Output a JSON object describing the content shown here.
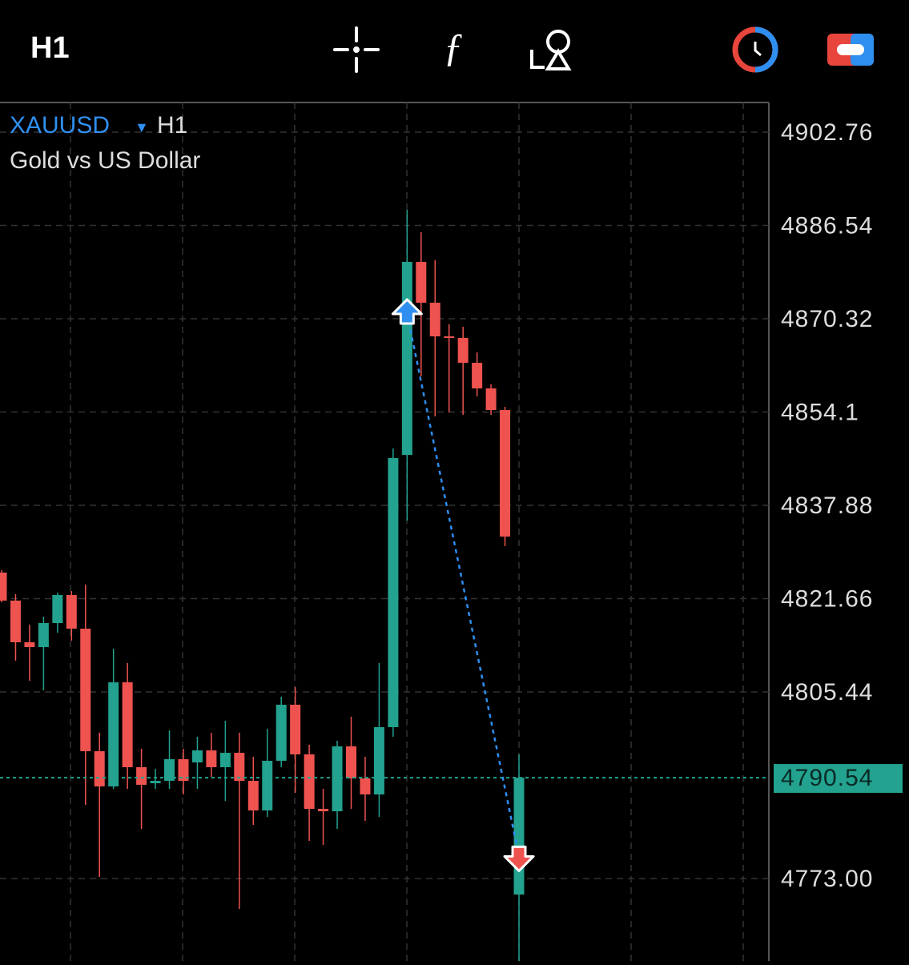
{
  "toolbar": {
    "timeframe": "H1"
  },
  "chart_data": {
    "type": "candlestick",
    "symbol": "XAUUSD",
    "timeframe": "H1",
    "title": "Gold vs US Dollar",
    "up_color": "#22a28f",
    "down_color": "#ef5350",
    "open": [
      4826.19,
      4821.32,
      4814.08,
      4813.24,
      4817.42,
      4822.29,
      4816.44,
      4795.14,
      4789.02,
      4807.12,
      4792.36,
      4789.57,
      4789.99,
      4793.75,
      4793.19,
      4795.28,
      4792.36,
      4794.86,
      4789.99,
      4784.84,
      4793.47,
      4803.22,
      4794.59,
      4785.12,
      4784.7,
      4795.98,
      4790.41,
      4787.62,
      4799.32,
      4846.65,
      4880.21,
      4873.11,
      4867.26,
      4866.98,
      4862.66,
      4858.21,
      4854.45,
      4770.22
    ],
    "high": [
      4826.61,
      4822.43,
      4817.14,
      4818.53,
      4822.71,
      4822.99,
      4824.1,
      4798.34,
      4812.96,
      4810.46,
      4795.56,
      4792.08,
      4798.76,
      4795.56,
      4797.65,
      4798.34,
      4800.43,
      4798.34,
      4794.17,
      4799.04,
      4804.61,
      4806.28,
      4796.26,
      4788.6,
      4796.95,
      4801.13,
      4794.17,
      4810.46,
      4847.77,
      4889.26,
      4885.36,
      4880.48,
      4869.35,
      4868.93,
      4864.47,
      4858.91,
      4855.01,
      4794.59
    ],
    "low": [
      4821.04,
      4810.87,
      4807.39,
      4805.72,
      4815.75,
      4814.36,
      4785.82,
      4773.29,
      4788.6,
      4788.6,
      4781.64,
      4788.6,
      4788.6,
      4787.62,
      4788.6,
      4790.69,
      4786.51,
      4767.72,
      4782.33,
      4783.73,
      4792.36,
      4787.9,
      4779.55,
      4778.85,
      4781.64,
      4785.12,
      4783.03,
      4783.73,
      4797.65,
      4835.24,
      4860.3,
      4853.34,
      4854.03,
      4853.62,
      4856.82,
      4853.62,
      4830.78,
      4757.27
    ],
    "close": [
      4821.32,
      4814.08,
      4813.24,
      4817.42,
      4822.29,
      4816.44,
      4795.14,
      4789.02,
      4807.12,
      4792.36,
      4789.3,
      4789.99,
      4793.75,
      4789.99,
      4795.28,
      4792.36,
      4794.86,
      4789.99,
      4784.84,
      4793.47,
      4803.22,
      4794.59,
      4785.12,
      4784.7,
      4795.98,
      4790.41,
      4787.62,
      4799.32,
      4846.1,
      4880.21,
      4873.11,
      4867.26,
      4866.98,
      4862.66,
      4858.21,
      4854.45,
      4832.45,
      4790.54
    ],
    "last_price": 4790.54,
    "last_price_color": "#22a28f",
    "trade": {
      "entry_index": 29,
      "entry_price": 4871.16,
      "exit_index": 37,
      "exit_price": 4776.85,
      "color": "#2f8ff0"
    },
    "ylim": [
      4758.67,
      4907.91
    ],
    "yticks": [
      4902.76,
      4886.54,
      4870.32,
      4854.1,
      4837.88,
      4821.66,
      4805.44,
      {
        "value": 4773,
        "label": "4773.00"
      }
    ],
    "grid": true
  }
}
